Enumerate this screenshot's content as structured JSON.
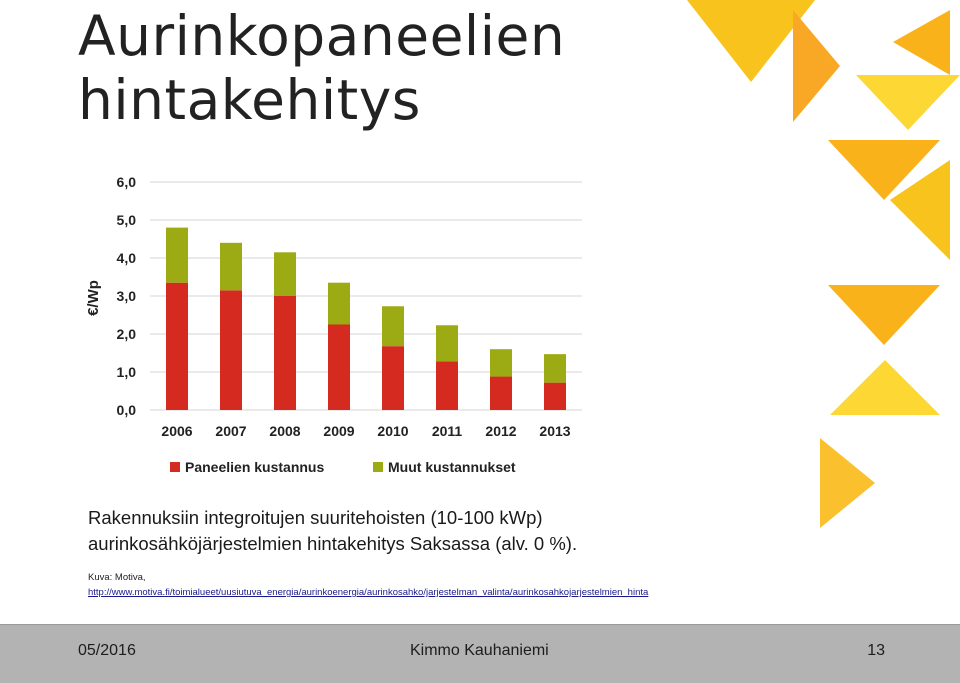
{
  "slide": {
    "title_line1": "Aurinkopaneelien",
    "title_line2": "hintakehitys",
    "caption_line1": "Rakennuksiin integroitujen suuritehoisten (10-100 kWp)",
    "caption_line2": "aurinkosähköjärjestelmien hintakehitys Saksassa (alv. 0 %).",
    "source_label": "Kuva: Motiva,",
    "source_url": "http://www.motiva.fi/toimialueet/uusiutuva_energia/aurinkoenergia/aurinkosahko/jarjestelman_valinta/aurinkosahkojarjestelmien_hinta"
  },
  "footer": {
    "date": "05/2016",
    "author": "Kimmo Kauhaniemi",
    "page": "13"
  },
  "colors": {
    "panel": "#d42a20",
    "other": "#9caa14",
    "grid": "#d4d4d4",
    "footer_bg": "#b3b3b3"
  },
  "chart_data": {
    "type": "bar",
    "stacked": true,
    "title": "",
    "xlabel": "",
    "ylabel": "€/Wp",
    "ylim": [
      0,
      6
    ],
    "yticks": [
      "0,0",
      "1,0",
      "2,0",
      "3,0",
      "4,0",
      "5,0",
      "6,0"
    ],
    "grid": true,
    "legend_position": "bottom",
    "categories": [
      "2006",
      "2007",
      "2008",
      "2009",
      "2010",
      "2011",
      "2012",
      "2013"
    ],
    "series": [
      {
        "name": "Paneelien kustannus",
        "color": "#d42a20",
        "values": [
          3.35,
          3.15,
          3.0,
          2.25,
          1.68,
          1.28,
          0.88,
          0.72
        ]
      },
      {
        "name": "Muut kustannukset",
        "color": "#9caa14",
        "values": [
          1.45,
          1.25,
          1.15,
          1.1,
          1.05,
          0.95,
          0.72,
          0.75
        ]
      }
    ]
  }
}
